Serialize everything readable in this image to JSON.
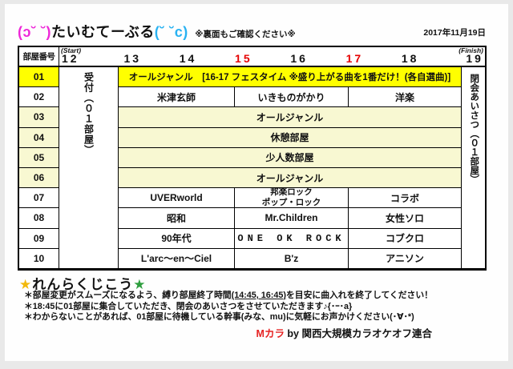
{
  "header": {
    "title_emote_left": "(ɔ˘ ˘)",
    "title_text": "たいむてーぶる",
    "title_emote_right": "(˘ ˘c)",
    "back_note": "※裏面もご確認ください※",
    "date": "2017年11月19日"
  },
  "table": {
    "room_header": "部屋番号",
    "start_label": "(Start)",
    "finish_label": "(Finish)",
    "times": [
      {
        "label": "12",
        "red": false
      },
      {
        "label": "13",
        "red": false
      },
      {
        "label": "14",
        "red": false
      },
      {
        "label": "15",
        "red": true
      },
      {
        "label": "16",
        "red": false
      },
      {
        "label": "17",
        "red": true
      },
      {
        "label": "18",
        "red": false
      },
      {
        "label": "19",
        "red": false
      }
    ],
    "reception_label": "受付（０１部屋）",
    "closing_label": "閉会あいさつ（０１部屋）",
    "rows": [
      {
        "num": "01",
        "type": "full",
        "text": "オールジャンル　[16-17 フェスタイム ※盛り上がる曲を1番だけ！(各自選曲)]",
        "highlight": "yellow"
      },
      {
        "num": "02",
        "type": "cols",
        "cells": [
          "米津玄師",
          "いきものがかり",
          "洋楽"
        ],
        "cell_classes": [
          "",
          "",
          ""
        ],
        "highlight": "white"
      },
      {
        "num": "03",
        "type": "full",
        "text": "オールジャンル",
        "highlight": "cream"
      },
      {
        "num": "04",
        "type": "full",
        "text": "休憩部屋",
        "highlight": "cream"
      },
      {
        "num": "05",
        "type": "full",
        "text": "少人数部屋",
        "highlight": "cream"
      },
      {
        "num": "06",
        "type": "full",
        "text": "オールジャンル",
        "highlight": "cream"
      },
      {
        "num": "07",
        "type": "cols",
        "cells": [
          "UVERworld",
          "邦楽ロック\nポップ・ロック",
          "コラボ"
        ],
        "cell_classes": [
          "",
          "two-line",
          ""
        ],
        "highlight": "white"
      },
      {
        "num": "08",
        "type": "cols",
        "cells": [
          "昭和",
          "Mr.Children",
          "女性ソロ"
        ],
        "cell_classes": [
          "",
          "",
          ""
        ],
        "highlight": "white"
      },
      {
        "num": "09",
        "type": "cols",
        "cells": [
          "90年代",
          "ONE OK ROCK",
          "コブクロ"
        ],
        "cell_classes": [
          "",
          "spaced",
          ""
        ],
        "highlight": "white"
      },
      {
        "num": "10",
        "type": "cols",
        "cells": [
          "L'arc～en～Ciel",
          "B'z",
          "アニソン"
        ],
        "cell_classes": [
          "",
          "",
          ""
        ],
        "highlight": "white"
      }
    ]
  },
  "notes": {
    "star": "★",
    "heading": "れんらくじこう",
    "line1_pre": "＊部屋変更がスムーズになるよう、縛り部屋終了時間",
    "line1_time": "(14:45, 16:45)",
    "line1_post": "を目安に曲入れを終了してください！",
    "line2": "＊18:45に01部屋に集合していただき、閉会のあいさつをさせていただきます♪{･ｰ･a}",
    "line3": "＊わからないことがあれば、01部屋に待機している幹事(みな、mu)に気軽にお声かけください(･∀･*)"
  },
  "footer": {
    "brand": "Mカラ",
    "credit": " by 関西大規模カラオケオフ連合"
  },
  "colors": {
    "row_yellow": "#ffff00",
    "row_cream": "#f8f8d2",
    "title_magenta": "#ee28d8",
    "title_cyan": "#29b2f2",
    "time_red": "#e60000",
    "brand_red": "#e62222",
    "star_gold": "#f2b90c",
    "star_green": "#2e9e3e"
  }
}
